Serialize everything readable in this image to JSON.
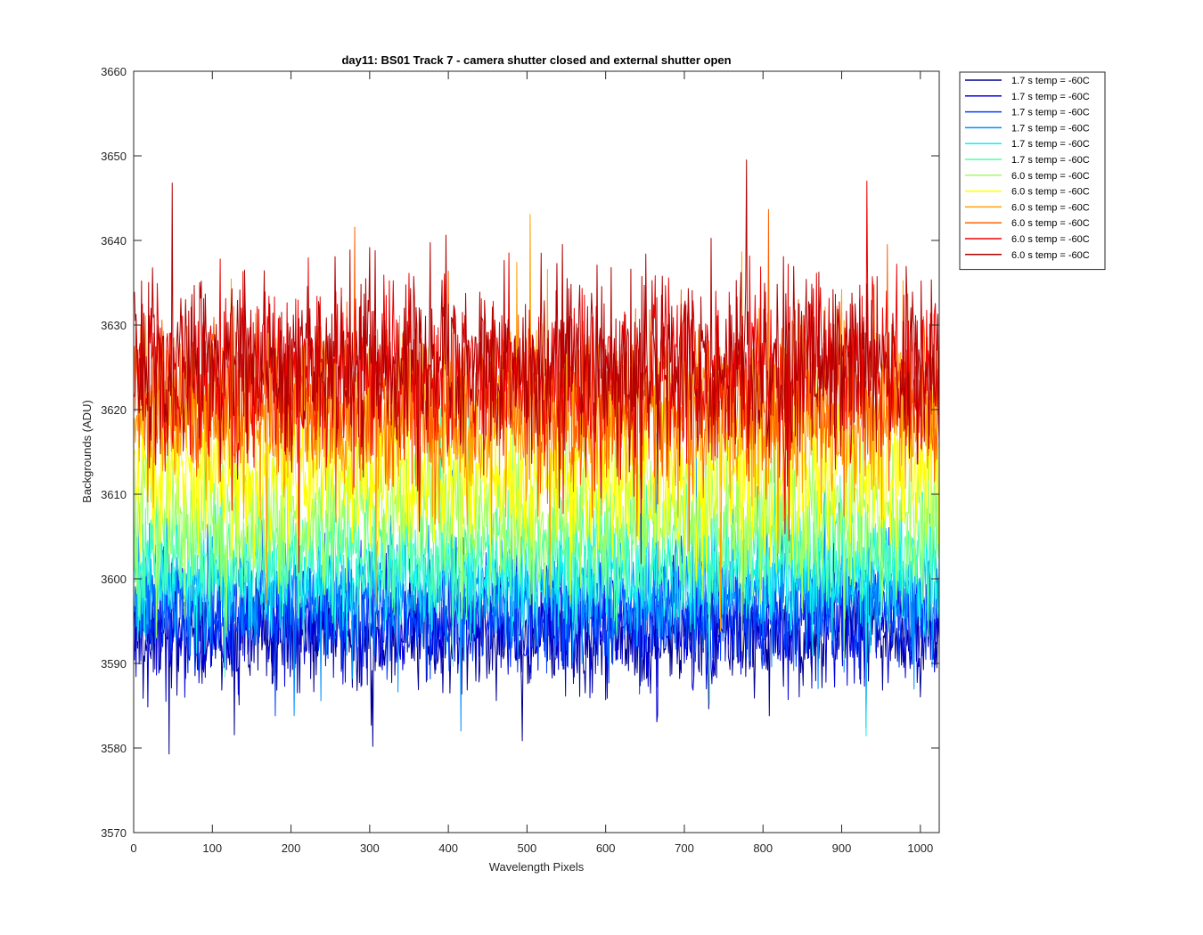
{
  "chart_data": {
    "type": "line",
    "title": "day11: BS01  Track 7 - camera shutter closed and external shutter open",
    "xlabel": "Wavelength Pixels",
    "ylabel": "Backgrounds (ADU)",
    "xlim": [
      0,
      1024
    ],
    "ylim": [
      3570,
      3660
    ],
    "xticks": [
      0,
      100,
      200,
      300,
      400,
      500,
      600,
      700,
      800,
      900,
      1000
    ],
    "yticks": [
      3570,
      3580,
      3590,
      3600,
      3610,
      3620,
      3630,
      3640,
      3650,
      3660
    ],
    "grid": false,
    "legend_position": "outside-top-right",
    "x_count": 1024,
    "series": [
      {
        "name": "1.7 s temp = -60C",
        "color": "#00008f",
        "mean": 3593.5,
        "amplitude": 4.5
      },
      {
        "name": "1.7 s temp = -60C",
        "color": "#0000df",
        "mean": 3594.5,
        "amplitude": 4.5
      },
      {
        "name": "1.7 s temp = -60C",
        "color": "#0040ff",
        "mean": 3596.5,
        "amplitude": 4.5
      },
      {
        "name": "1.7 s temp = -60C",
        "color": "#0090ff",
        "mean": 3598.5,
        "amplitude": 4.5
      },
      {
        "name": "1.7 s temp = -60C",
        "color": "#10f0ef",
        "mean": 3600.5,
        "amplitude": 4.5
      },
      {
        "name": "1.7 s temp = -60C",
        "color": "#50ffaf",
        "mean": 3603.5,
        "amplitude": 4.5
      },
      {
        "name": "6.0 s temp = -60C",
        "color": "#a0ff60",
        "mean": 3607.5,
        "amplitude": 5.5
      },
      {
        "name": "6.0 s temp = -60C",
        "color": "#ffff00",
        "mean": 3612.5,
        "amplitude": 6
      },
      {
        "name": "6.0 s temp = -60C",
        "color": "#ffa000",
        "mean": 3619.5,
        "amplitude": 6.5
      },
      {
        "name": "6.0 s temp = -60C",
        "color": "#ff6000",
        "mean": 3621.5,
        "amplitude": 6.5
      },
      {
        "name": "6.0 s temp = -60C",
        "color": "#ef0000",
        "mean": 3624.5,
        "amplitude": 7
      },
      {
        "name": "6.0 s temp = -60C",
        "color": "#af0000",
        "mean": 3625.5,
        "amplitude": 7
      }
    ]
  }
}
